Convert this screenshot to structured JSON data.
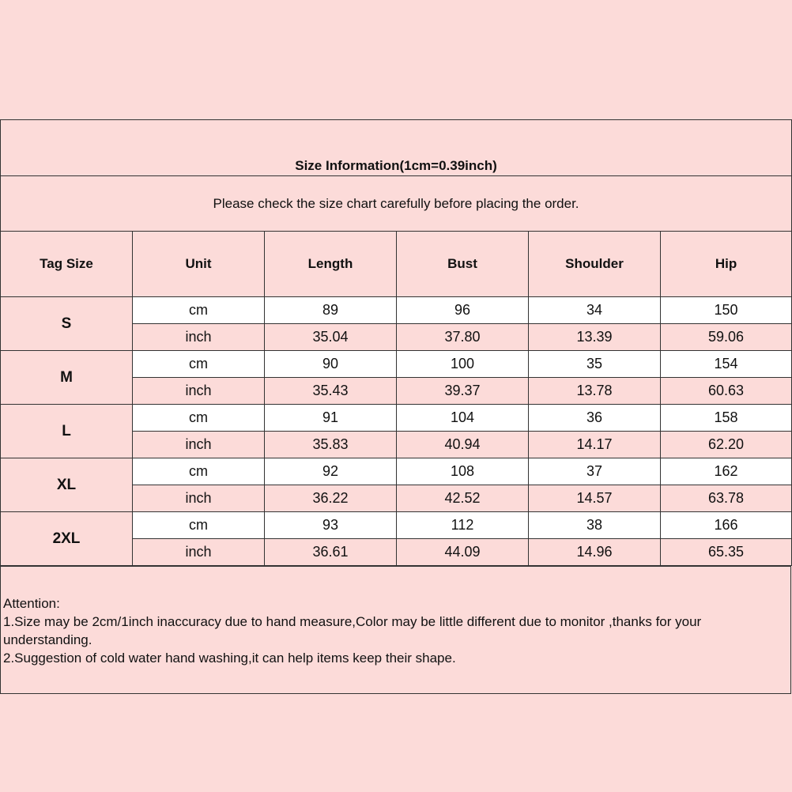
{
  "title": "Size Information(1cm=0.39inch)",
  "subtitle": "Please check the size chart carefully before placing the order.",
  "headers": [
    "Tag Size",
    "Unit",
    "Length",
    "Bust",
    "Shoulder",
    "Hip"
  ],
  "rows": [
    {
      "size": "S",
      "cm": [
        "89",
        "96",
        "34",
        "150"
      ],
      "inch": [
        "35.04",
        "37.80",
        "13.39",
        "59.06"
      ]
    },
    {
      "size": "M",
      "cm": [
        "90",
        "100",
        "35",
        "154"
      ],
      "inch": [
        "35.43",
        "39.37",
        "13.78",
        "60.63"
      ]
    },
    {
      "size": "L",
      "cm": [
        "91",
        "104",
        "36",
        "158"
      ],
      "inch": [
        "35.83",
        "40.94",
        "14.17",
        "62.20"
      ]
    },
    {
      "size": "XL",
      "cm": [
        "92",
        "108",
        "37",
        "162"
      ],
      "inch": [
        "36.22",
        "42.52",
        "14.57",
        "63.78"
      ]
    },
    {
      "size": "2XL",
      "cm": [
        "93",
        "112",
        "38",
        "166"
      ],
      "inch": [
        "36.61",
        "44.09",
        "14.96",
        "65.35"
      ]
    }
  ],
  "units": {
    "cm": "cm",
    "inch": "inch"
  },
  "notes": [
    "Attention:",
    "1.Size may be 2cm/1inch inaccuracy due to hand measure,Color may be little different due to monitor ,thanks for your understanding.",
    "2.Suggestion of cold water hand washing,it can help items keep their shape."
  ],
  "colors": {
    "background": "#fcdbd9",
    "white_row": "#ffffff",
    "border": "#333333"
  }
}
